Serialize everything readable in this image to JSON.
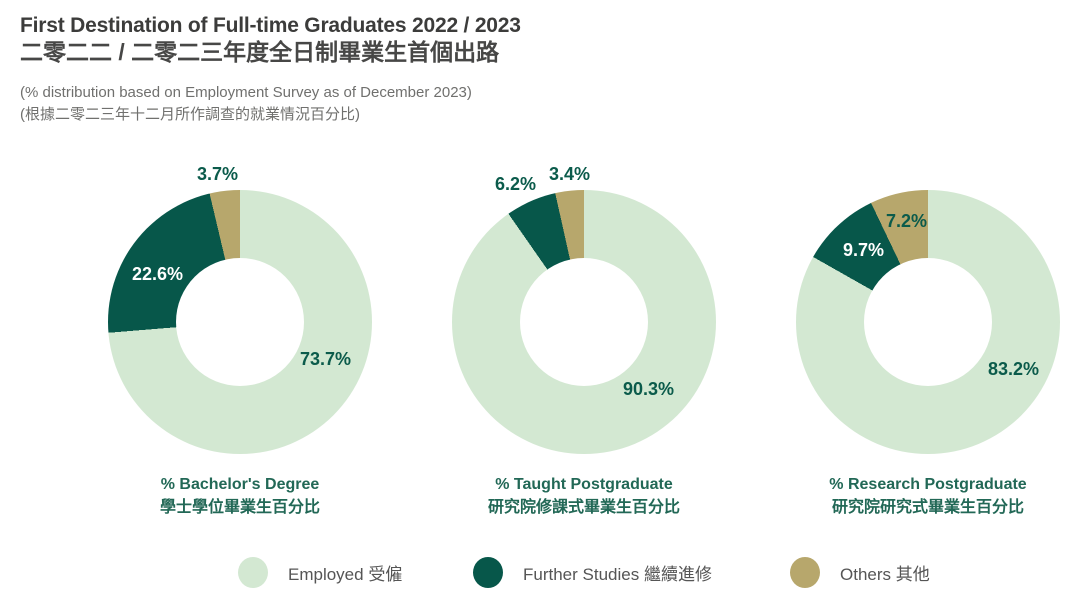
{
  "header": {
    "title_en": "First Destination of Full-time Graduates 2022 / 2023",
    "title_zh": "二零二二 / 二零二三年度全日制畢業生首個出路",
    "subtitle_en": "(% distribution based on Employment Survey as of December 2023)",
    "subtitle_zh": "(根據二零二三年十二月所作調查的就業情況百分比)"
  },
  "colors": {
    "employed": "#d3e8d2",
    "further_studies": "#07574a",
    "others": "#b7a76c",
    "label_green": "#0b5b4b",
    "caption_green": "#226856",
    "title_gray": "#3c3c3b",
    "subtitle_gray": "#70706e",
    "legend_text_gray": "#555555"
  },
  "chart_data": [
    {
      "type": "pie",
      "subtype": "donut",
      "title_en": "% Bachelor's Degree",
      "title_zh": "學士學位畢業生百分比",
      "start_angle_deg": 0,
      "direction": "clockwise",
      "slices": [
        {
          "key": "employed",
          "name": "Employed 受僱",
          "value": 73.7,
          "label": "73.7%"
        },
        {
          "key": "further_studies",
          "name": "Further Studies 繼續進修",
          "value": 22.6,
          "label": "22.6%"
        },
        {
          "key": "others",
          "name": "Others 其他",
          "value": 3.7,
          "label": "3.7%"
        }
      ]
    },
    {
      "type": "pie",
      "subtype": "donut",
      "title_en": "% Taught Postgraduate",
      "title_zh": "研究院修課式畢業生百分比",
      "start_angle_deg": 0,
      "direction": "clockwise",
      "slices": [
        {
          "key": "employed",
          "name": "Employed 受僱",
          "value": 90.3,
          "label": "90.3%"
        },
        {
          "key": "further_studies",
          "name": "Further Studies 繼續進修",
          "value": 6.2,
          "label": "6.2%"
        },
        {
          "key": "others",
          "name": "Others 其他",
          "value": 3.4,
          "label": "3.4%"
        }
      ]
    },
    {
      "type": "pie",
      "subtype": "donut",
      "title_en": "% Research Postgraduate",
      "title_zh": "研究院研究式畢業生百分比",
      "start_angle_deg": 0,
      "direction": "clockwise",
      "slices": [
        {
          "key": "employed",
          "name": "Employed 受僱",
          "value": 83.2,
          "label": "83.2%"
        },
        {
          "key": "further_studies",
          "name": "Further Studies 繼續進修",
          "value": 9.7,
          "label": "9.7%"
        },
        {
          "key": "others",
          "name": "Others 其他",
          "value": 7.2,
          "label": "7.2%"
        }
      ]
    }
  ],
  "legend": {
    "items": [
      {
        "key": "employed",
        "label": "Employed 受僱"
      },
      {
        "key": "further_studies",
        "label": "Further Studies 繼續進修"
      },
      {
        "key": "others",
        "label": "Others 其他"
      }
    ]
  }
}
